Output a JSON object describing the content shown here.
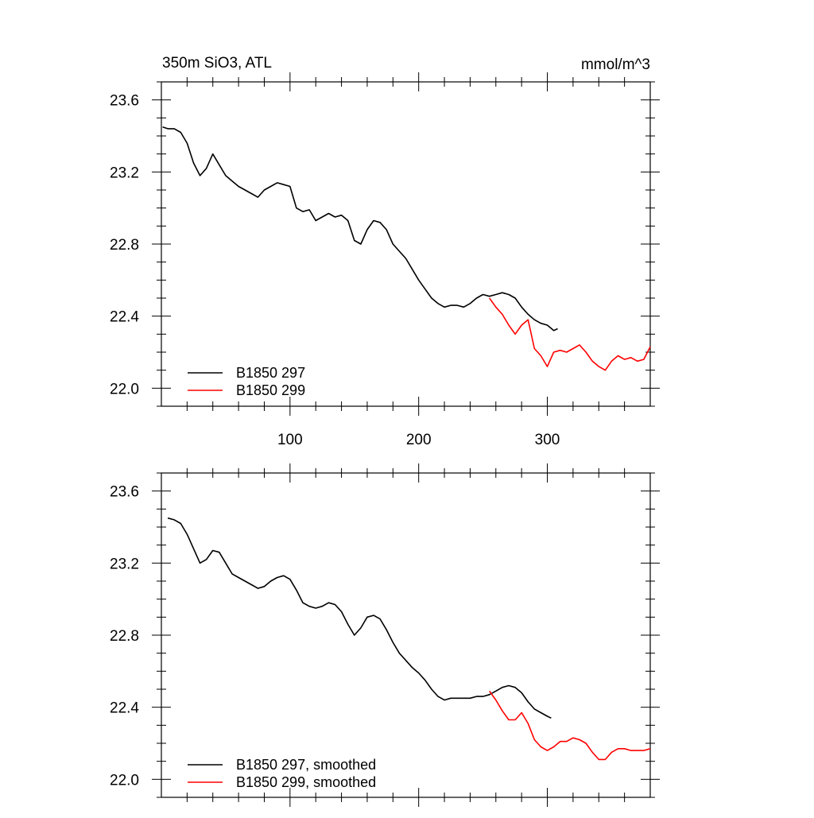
{
  "chart_data": [
    {
      "type": "line",
      "title_left": "350m SiO3, ATL",
      "title_right": "mmol/m^3",
      "xlabel": "",
      "ylabel": "",
      "xlim": [
        0,
        380
      ],
      "ylim": [
        21.9,
        23.7
      ],
      "x_ticks": [
        100,
        200,
        300
      ],
      "x_tick_labels": [
        "100",
        "200",
        "300"
      ],
      "y_ticks": [
        22.0,
        22.4,
        22.8,
        23.2,
        23.6
      ],
      "y_tick_labels": [
        "22.0",
        "22.4",
        "22.8",
        "23.2",
        "23.6"
      ],
      "legend_position": "bottom-left",
      "series": [
        {
          "name": "B1850 297",
          "color": "#000000",
          "x": [
            1,
            5,
            10,
            15,
            20,
            25,
            30,
            35,
            40,
            45,
            50,
            55,
            60,
            65,
            70,
            75,
            80,
            85,
            90,
            95,
            100,
            105,
            110,
            115,
            120,
            125,
            130,
            135,
            140,
            145,
            150,
            155,
            160,
            165,
            170,
            175,
            180,
            185,
            190,
            195,
            200,
            205,
            210,
            215,
            220,
            225,
            230,
            235,
            240,
            245,
            250,
            255,
            260,
            265,
            270,
            275,
            280,
            285,
            290,
            295,
            300,
            305,
            308
          ],
          "y": [
            23.45,
            23.44,
            23.44,
            23.42,
            23.36,
            23.25,
            23.18,
            23.22,
            23.3,
            23.24,
            23.18,
            23.15,
            23.12,
            23.1,
            23.08,
            23.06,
            23.1,
            23.12,
            23.14,
            23.13,
            23.12,
            23.0,
            22.98,
            22.99,
            22.93,
            22.95,
            22.97,
            22.95,
            22.96,
            22.93,
            22.82,
            22.8,
            22.88,
            22.93,
            22.92,
            22.88,
            22.8,
            22.76,
            22.72,
            22.66,
            22.6,
            22.55,
            22.5,
            22.47,
            22.45,
            22.46,
            22.46,
            22.45,
            22.47,
            22.5,
            22.52,
            22.51,
            22.52,
            22.53,
            22.52,
            22.5,
            22.45,
            22.41,
            22.38,
            22.36,
            22.35,
            22.32,
            22.33
          ]
        },
        {
          "name": "B1850 299",
          "color": "#ff0000",
          "x": [
            255,
            260,
            265,
            270,
            275,
            280,
            285,
            290,
            295,
            300,
            305,
            310,
            315,
            320,
            325,
            330,
            335,
            340,
            345,
            350,
            355,
            360,
            365,
            370,
            375,
            380
          ],
          "y": [
            22.5,
            22.45,
            22.41,
            22.35,
            22.3,
            22.35,
            22.38,
            22.22,
            22.18,
            22.12,
            22.2,
            22.21,
            22.2,
            22.22,
            22.24,
            22.2,
            22.15,
            22.12,
            22.1,
            22.15,
            22.18,
            22.16,
            22.17,
            22.15,
            22.16,
            22.23
          ]
        }
      ]
    },
    {
      "type": "line",
      "xlabel": "",
      "ylabel": "",
      "xlim": [
        0,
        380
      ],
      "ylim": [
        21.9,
        23.7
      ],
      "y_ticks": [
        22.0,
        22.4,
        22.8,
        23.2,
        23.6
      ],
      "y_tick_labels": [
        "22.0",
        "22.4",
        "22.8",
        "23.2",
        "23.6"
      ],
      "legend_position": "bottom-left",
      "series": [
        {
          "name": "B1850 297, smoothed",
          "color": "#000000",
          "x": [
            5,
            10,
            15,
            20,
            25,
            30,
            35,
            40,
            45,
            50,
            55,
            60,
            65,
            70,
            75,
            80,
            85,
            90,
            95,
            100,
            105,
            110,
            115,
            120,
            125,
            130,
            135,
            140,
            145,
            150,
            155,
            160,
            165,
            170,
            175,
            180,
            185,
            190,
            195,
            200,
            205,
            210,
            215,
            220,
            225,
            230,
            235,
            240,
            245,
            250,
            255,
            260,
            265,
            270,
            275,
            280,
            285,
            290,
            295,
            300,
            303
          ],
          "y": [
            23.45,
            23.44,
            23.42,
            23.36,
            23.28,
            23.2,
            23.22,
            23.27,
            23.26,
            23.2,
            23.14,
            23.12,
            23.1,
            23.08,
            23.06,
            23.07,
            23.1,
            23.12,
            23.13,
            23.11,
            23.05,
            22.98,
            22.96,
            22.95,
            22.96,
            22.98,
            22.97,
            22.93,
            22.86,
            22.8,
            22.84,
            22.9,
            22.91,
            22.89,
            22.83,
            22.76,
            22.7,
            22.66,
            22.62,
            22.59,
            22.55,
            22.5,
            22.46,
            22.44,
            22.45,
            22.45,
            22.45,
            22.45,
            22.46,
            22.46,
            22.47,
            22.49,
            22.51,
            22.52,
            22.51,
            22.48,
            22.43,
            22.39,
            22.37,
            22.35,
            22.34
          ]
        },
        {
          "name": "B1850 299, smoothed",
          "color": "#ff0000",
          "x": [
            255,
            260,
            265,
            270,
            275,
            280,
            285,
            290,
            295,
            300,
            305,
            310,
            315,
            320,
            325,
            330,
            335,
            340,
            345,
            350,
            355,
            360,
            365,
            370,
            375,
            380
          ],
          "y": [
            22.49,
            22.44,
            22.38,
            22.33,
            22.33,
            22.37,
            22.31,
            22.22,
            22.18,
            22.16,
            22.18,
            22.21,
            22.21,
            22.23,
            22.22,
            22.2,
            22.15,
            22.11,
            22.11,
            22.15,
            22.17,
            22.17,
            22.16,
            22.16,
            22.16,
            22.17
          ]
        }
      ]
    }
  ]
}
